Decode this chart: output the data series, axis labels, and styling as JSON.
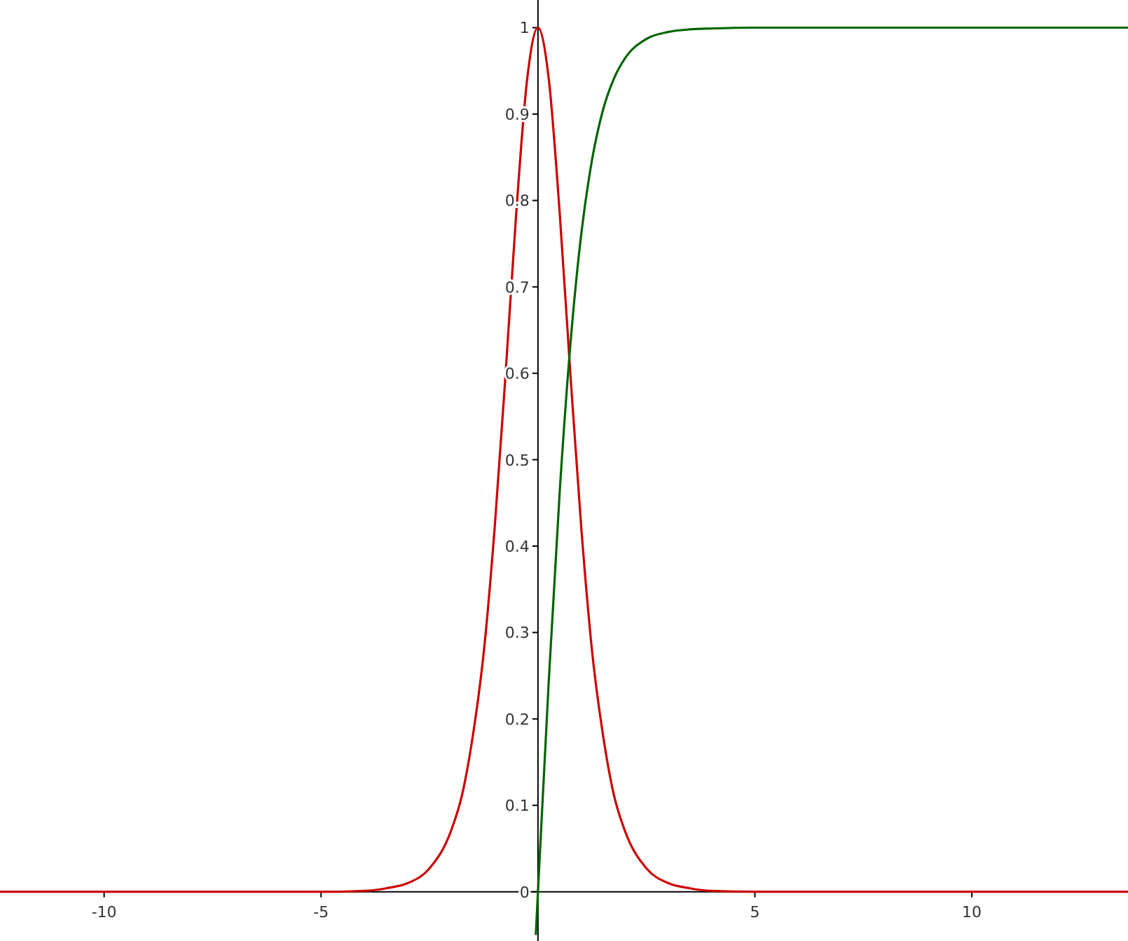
{
  "chart_data": {
    "type": "line",
    "xlim": [
      -12.4,
      13.6
    ],
    "ylim": [
      -0.057,
      1.032
    ],
    "xticks": [
      -10,
      -5,
      5,
      10
    ],
    "yticks": [
      0,
      0.1,
      0.2,
      0.3,
      0.4,
      0.5,
      0.6,
      0.7,
      0.8,
      0.9,
      1
    ],
    "grid": false,
    "marker": "none",
    "line_style": "solid",
    "series": [
      {
        "color": "#cc0000",
        "x": [
          -12.4,
          -5,
          -4,
          -3.5,
          -3,
          -2.5,
          -2,
          -1.75,
          -1.5,
          -1.25,
          -1,
          -0.75,
          -0.5,
          -0.25,
          0,
          0.25,
          0.5,
          0.75,
          1,
          1.25,
          1.5,
          1.75,
          2,
          2.5,
          3,
          3.5,
          4,
          5,
          13.6
        ],
        "values": [
          0,
          0,
          0.001,
          0.004,
          0.01,
          0.027,
          0.071,
          0.112,
          0.181,
          0.277,
          0.42,
          0.597,
          0.786,
          0.94,
          1,
          0.94,
          0.786,
          0.597,
          0.42,
          0.277,
          0.181,
          0.112,
          0.071,
          0.027,
          0.01,
          0.004,
          0.001,
          0,
          0
        ]
      },
      {
        "color": "#006400",
        "x": [
          -0.05,
          0,
          0.25,
          0.5,
          0.75,
          1,
          1.25,
          1.5,
          1.75,
          2,
          2.5,
          3,
          3.5,
          4,
          5,
          13.6
        ],
        "values": [
          -0.05,
          0,
          0.245,
          0.462,
          0.635,
          0.762,
          0.848,
          0.905,
          0.941,
          0.964,
          0.987,
          0.995,
          0.998,
          0.999,
          1,
          1
        ]
      }
    ]
  }
}
